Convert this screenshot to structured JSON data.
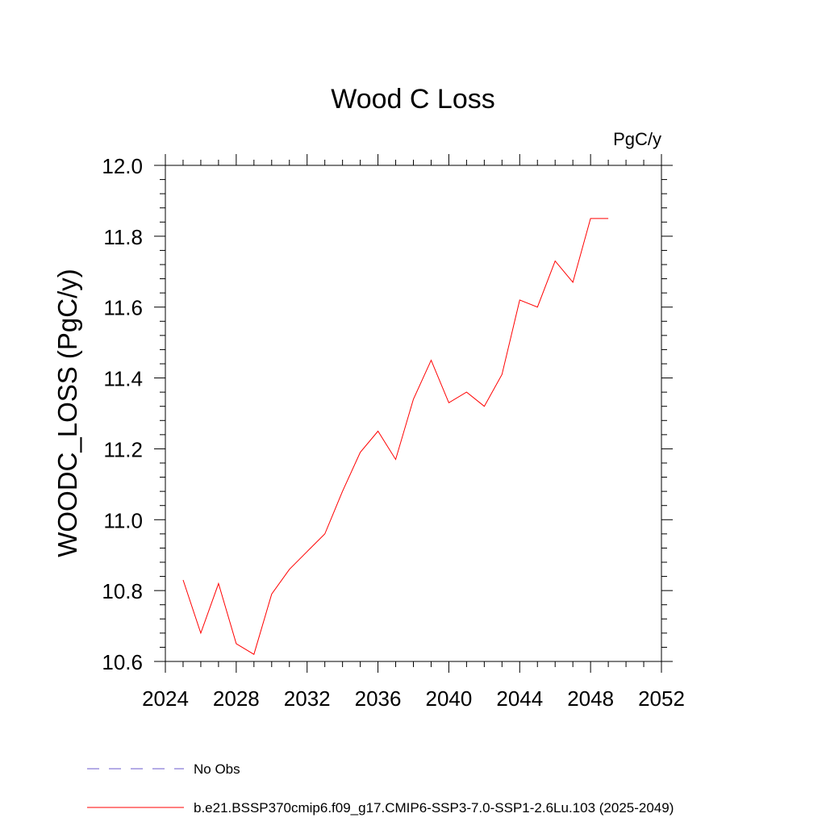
{
  "chart_data": {
    "type": "line",
    "title": "Wood C Loss",
    "units_label": "PgC/y",
    "ylabel": "WOODC_LOSS  (PgC/y)",
    "xlabel": "",
    "xlim": [
      2024,
      2052
    ],
    "ylim": [
      10.6,
      12.0
    ],
    "xticks": [
      "2024",
      "2028",
      "2032",
      "2036",
      "2040",
      "2044",
      "2048",
      "2052"
    ],
    "yticks": [
      "10.6",
      "10.8",
      "11.0",
      "11.2",
      "11.4",
      "11.6",
      "11.8",
      "12.0"
    ],
    "grid": false,
    "legend_position": "bottom-left",
    "series": [
      {
        "name": "No Obs",
        "color": "#6a5acd",
        "line_style": "dashed",
        "x": [],
        "y": []
      },
      {
        "name": "b.e21.BSSP370cmip6.f09_g17.CMIP6-SSP3-7.0-SSP1-2.6Lu.103 (2025-2049)",
        "color": "#ff0000",
        "line_style": "solid",
        "x": [
          2025,
          2026,
          2027,
          2028,
          2029,
          2030,
          2031,
          2032,
          2033,
          2034,
          2035,
          2036,
          2037,
          2038,
          2039,
          2040,
          2041,
          2042,
          2043,
          2044,
          2045,
          2046,
          2047,
          2048,
          2049
        ],
        "y": [
          10.83,
          10.68,
          10.82,
          10.65,
          10.62,
          10.79,
          10.86,
          10.91,
          10.96,
          11.08,
          11.19,
          11.25,
          11.17,
          11.34,
          11.45,
          11.33,
          11.36,
          11.32,
          11.41,
          11.62,
          11.6,
          11.73,
          11.67,
          11.85,
          11.85
        ]
      }
    ]
  }
}
